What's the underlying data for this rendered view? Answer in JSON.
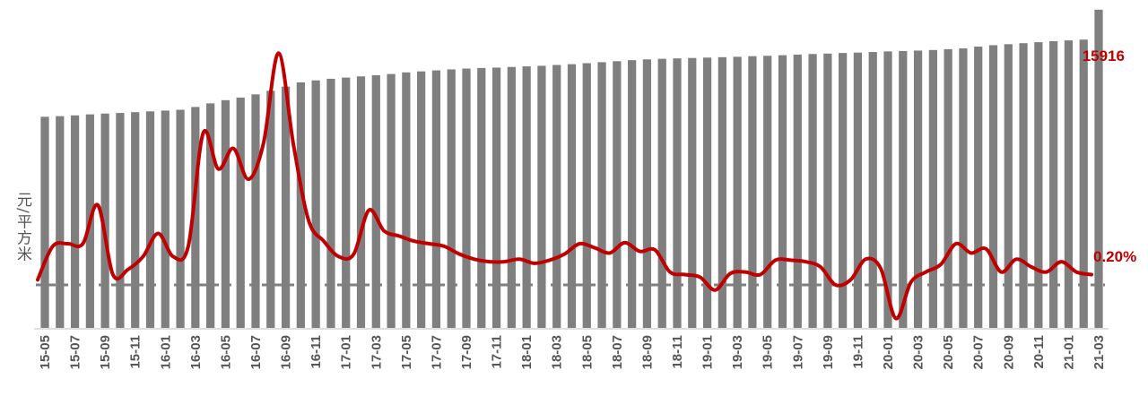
{
  "chart_data": {
    "type": "bar",
    "ylabel": "元/平方米",
    "categories": [
      "15-05",
      "15-06",
      "15-07",
      "15-08",
      "15-09",
      "15-10",
      "15-11",
      "15-12",
      "16-01",
      "16-02",
      "16-03",
      "16-04",
      "16-05",
      "16-06",
      "16-07",
      "16-08",
      "16-09",
      "16-10",
      "16-11",
      "16-12",
      "17-01",
      "17-02",
      "17-03",
      "17-04",
      "17-05",
      "17-06",
      "17-07",
      "17-08",
      "17-09",
      "17-10",
      "17-11",
      "17-12",
      "18-01",
      "18-02",
      "18-03",
      "18-04",
      "18-05",
      "18-06",
      "18-07",
      "18-08",
      "18-09",
      "18-10",
      "18-11",
      "18-12",
      "19-01",
      "19-02",
      "19-03",
      "19-04",
      "19-05",
      "19-06",
      "19-07",
      "19-08",
      "19-09",
      "19-10",
      "19-11",
      "19-12",
      "20-01",
      "20-02",
      "20-03",
      "20-04",
      "20-05",
      "20-06",
      "20-07",
      "20-08",
      "20-09",
      "20-10",
      "20-11",
      "20-12",
      "21-01",
      "21-02",
      "21-03"
    ],
    "tick_labels": [
      "15-05",
      "15-07",
      "15-09",
      "15-11",
      "16-01",
      "16-03",
      "16-05",
      "16-07",
      "16-09",
      "16-11",
      "17-01",
      "17-03",
      "17-05",
      "17-07",
      "17-09",
      "17-11",
      "18-01",
      "18-03",
      "18-05",
      "18-07",
      "18-09",
      "18-11",
      "19-01",
      "19-03",
      "19-05",
      "19-07",
      "19-09",
      "19-11",
      "20-01",
      "20-03",
      "20-05",
      "20-07",
      "20-09",
      "20-11",
      "21-01",
      "21-03"
    ],
    "series": [
      {
        "type": "bar",
        "color": "#7f7f7f",
        "values": [
          10560,
          10590,
          10630,
          10680,
          10720,
          10750,
          10790,
          10830,
          10870,
          10910,
          11050,
          11230,
          11390,
          11520,
          11680,
          11860,
          12070,
          12280,
          12380,
          12460,
          12520,
          12580,
          12640,
          12700,
          12780,
          12830,
          12880,
          12930,
          12970,
          13000,
          13020,
          13050,
          13080,
          13110,
          13150,
          13190,
          13240,
          13290,
          13340,
          13390,
          13430,
          13460,
          13480,
          13500,
          13520,
          13540,
          13560,
          13590,
          13610,
          13640,
          13670,
          13700,
          13720,
          13750,
          13770,
          13800,
          13830,
          13850,
          13870,
          13900,
          13940,
          13980,
          14070,
          14140,
          14190,
          14240,
          14290,
          14340,
          14380,
          14420,
          15916
        ]
      },
      {
        "type": "line",
        "color": "#c00000",
        "values": [
          0.1,
          0.75,
          0.8,
          0.8,
          1.55,
          0.2,
          0.3,
          0.55,
          1.0,
          0.55,
          0.75,
          2.95,
          2.25,
          2.65,
          2.05,
          2.75,
          4.5,
          2.7,
          1.25,
          0.85,
          0.55,
          0.6,
          1.45,
          1.05,
          0.95,
          0.85,
          0.8,
          0.75,
          0.6,
          0.5,
          0.45,
          0.45,
          0.5,
          0.42,
          0.48,
          0.6,
          0.8,
          0.72,
          0.62,
          0.82,
          0.65,
          0.68,
          0.25,
          0.2,
          0.15,
          -0.1,
          0.22,
          0.25,
          0.2,
          0.48,
          0.48,
          0.45,
          0.35,
          0.0,
          0.1,
          0.5,
          0.32,
          -0.65,
          0.05,
          0.25,
          0.4,
          0.8,
          0.62,
          0.7,
          0.25,
          0.5,
          0.35,
          0.25,
          0.45,
          0.25,
          0.2
        ]
      }
    ],
    "reference_line": {
      "value": 0,
      "style": "dashed",
      "color": "#7f7f7f"
    },
    "bar_ylim": [
      0,
      16400
    ],
    "line_ylim": [
      -2.0,
      5.2
    ],
    "grid": false,
    "legend": "none",
    "annotations": [
      {
        "text": "15916",
        "series": "bar",
        "color": "#c00000"
      },
      {
        "text": "0.20%",
        "series": "line",
        "color": "#c00000"
      }
    ]
  }
}
